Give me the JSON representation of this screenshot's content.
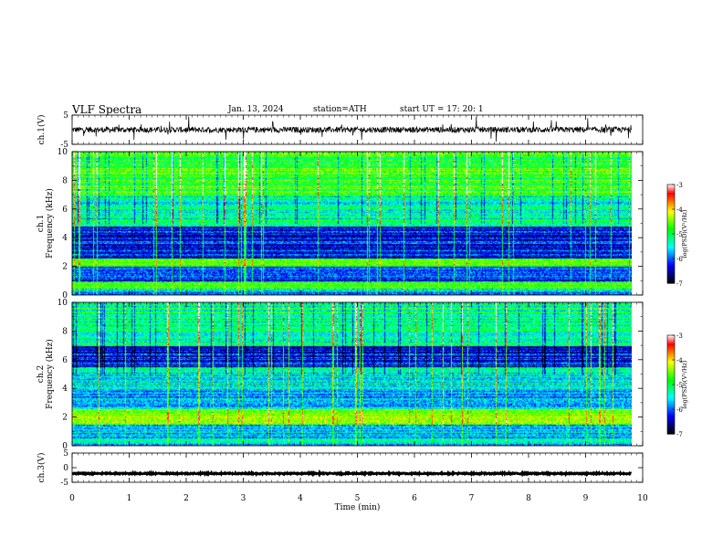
{
  "header": {
    "title": "VLF  Spectra",
    "date": "Jan.  13,  2024",
    "station": "station=ATH",
    "start_ut": "start  UT  =    17: 20: 1"
  },
  "colors": {
    "background": "#ffffff",
    "axes": "#000000",
    "colormap": [
      "#000000",
      "#000080",
      "#0000ff",
      "#0080ff",
      "#00ffff",
      "#00ff80",
      "#00ff00",
      "#80ff00",
      "#ffff00",
      "#ff8000",
      "#ff0000",
      "#ffffff"
    ]
  },
  "chart_data": [
    {
      "type": "line",
      "name": "ch1-waveform",
      "ylabel": "ch.1(V)",
      "ylim": [
        -5,
        5
      ],
      "yticks": [
        "5",
        "-5"
      ],
      "xlim": [
        0,
        10
      ],
      "summary": {
        "baseline_v": 0.0,
        "noise_amplitude_v": 1.0,
        "spike_max_v": 4.0
      }
    },
    {
      "type": "heatmap",
      "name": "ch1-spectrogram",
      "ylabel": "ch.1\nFrequency  (kHz)",
      "ylim": [
        0,
        10
      ],
      "yticks": [
        "0",
        "2",
        "4",
        "6",
        "8",
        "10"
      ],
      "xlim": [
        0,
        9.8
      ],
      "colorbar": {
        "label": "log(PSD)(V²/Hz)",
        "range": [
          -7,
          -3
        ],
        "ticks": [
          "-3",
          "-4",
          "-5",
          "-6",
          "-7"
        ]
      },
      "bands": [
        {
          "from_khz": 0.0,
          "to_khz": 0.3,
          "level": -6.0
        },
        {
          "from_khz": 0.3,
          "to_khz": 1.0,
          "level": -5.4
        },
        {
          "from_khz": 1.0,
          "to_khz": 2.0,
          "level": -6.2
        },
        {
          "from_khz": 2.0,
          "to_khz": 2.6,
          "level": -4.9
        },
        {
          "from_khz": 2.6,
          "to_khz": 4.8,
          "level": -6.3
        },
        {
          "from_khz": 4.8,
          "to_khz": 7.0,
          "level": -5.3
        },
        {
          "from_khz": 7.0,
          "to_khz": 10.0,
          "level": -4.8
        }
      ],
      "lines_khz": [
        2.2,
        2.4,
        0.8,
        0.6
      ]
    },
    {
      "type": "heatmap",
      "name": "ch2-spectrogram",
      "ylabel": "ch.2\nFrequency  (kHz)",
      "ylim": [
        0,
        10
      ],
      "yticks": [
        "0",
        "2",
        "4",
        "6",
        "8",
        "10"
      ],
      "xlim": [
        0,
        9.8
      ],
      "colorbar": {
        "label": "log(PSD)(V²/Hz)",
        "range": [
          -7,
          -3
        ],
        "ticks": [
          "-3",
          "-4",
          "-5",
          "-6",
          "-7"
        ]
      },
      "bands": [
        {
          "from_khz": 0.0,
          "to_khz": 1.5,
          "level": -5.6
        },
        {
          "from_khz": 1.5,
          "to_khz": 2.6,
          "level": -4.6
        },
        {
          "from_khz": 2.6,
          "to_khz": 4.0,
          "level": -5.7
        },
        {
          "from_khz": 4.0,
          "to_khz": 5.5,
          "level": -5.4
        },
        {
          "from_khz": 5.5,
          "to_khz": 7.0,
          "level": -6.3
        },
        {
          "from_khz": 7.0,
          "to_khz": 10.0,
          "level": -5.2
        }
      ],
      "lines_khz": [
        2.0,
        2.2,
        1.9
      ]
    },
    {
      "type": "line",
      "name": "ch3-waveform",
      "ylabel": "ch.3(V)",
      "ylim": [
        -5,
        5
      ],
      "yticks": [
        "5",
        "0",
        "-5"
      ],
      "xlim": [
        0,
        10
      ],
      "summary": {
        "baseline_v": -2.0,
        "noise_amplitude_v": 0.2
      }
    }
  ],
  "x_axis": {
    "label": "Time  (min)",
    "ticks": [
      "0",
      "1",
      "2",
      "3",
      "4",
      "5",
      "6",
      "7",
      "8",
      "9",
      "10"
    ],
    "range": [
      0,
      10
    ]
  }
}
